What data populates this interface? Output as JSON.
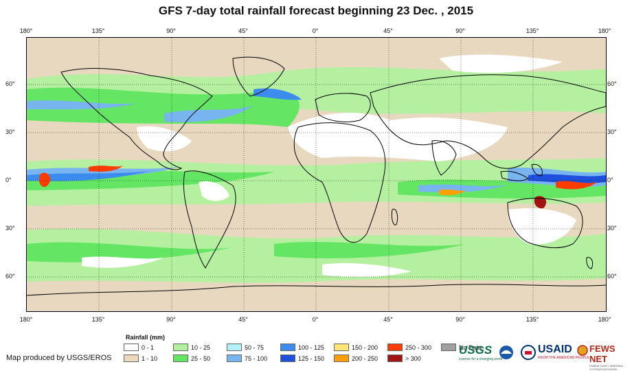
{
  "title": "GFS 7-day total rainfall forecast beginning 23 Dec. , 2015",
  "lon_labels": [
    "180°",
    "135°",
    "90°",
    "45°",
    "0°",
    "45°",
    "90°",
    "135°",
    "180°"
  ],
  "lat_labels": [
    "60°",
    "30°",
    "0°",
    "30°",
    "60°"
  ],
  "legend": {
    "title": "Rainfall (mm)",
    "items": [
      {
        "label": "0 - 1",
        "color": "#ffffff"
      },
      {
        "label": "1 - 10",
        "color": "#ecd8bc"
      },
      {
        "label": "10 - 25",
        "color": "#b4f0a0"
      },
      {
        "label": "25 - 50",
        "color": "#64e664"
      },
      {
        "label": "50 - 75",
        "color": "#b4f0f8"
      },
      {
        "label": "75 - 100",
        "color": "#78b4f0"
      },
      {
        "label": "100 - 125",
        "color": "#3c8cf0"
      },
      {
        "label": "125 - 150",
        "color": "#1e50dc"
      },
      {
        "label": "150 - 200",
        "color": "#ffe678"
      },
      {
        "label": "200 - 250",
        "color": "#ffa000"
      },
      {
        "label": "250 - 300",
        "color": "#ff3c00"
      },
      {
        "label": "> 300",
        "color": "#a01414"
      },
      {
        "label": "No Data",
        "color": "#a0a0a0"
      }
    ]
  },
  "credit": "Map produced by USGS/EROS",
  "logos": {
    "usgs": "USGS",
    "usgs_tagline": "science for a changing world",
    "usaid": "USAID",
    "usaid_tagline": "FROM THE AMERICAN PEOPLE",
    "fews": "FEWS NET",
    "fews_tagline": "FAMINE EARLY WARNING SYSTEMS NETWORK"
  }
}
